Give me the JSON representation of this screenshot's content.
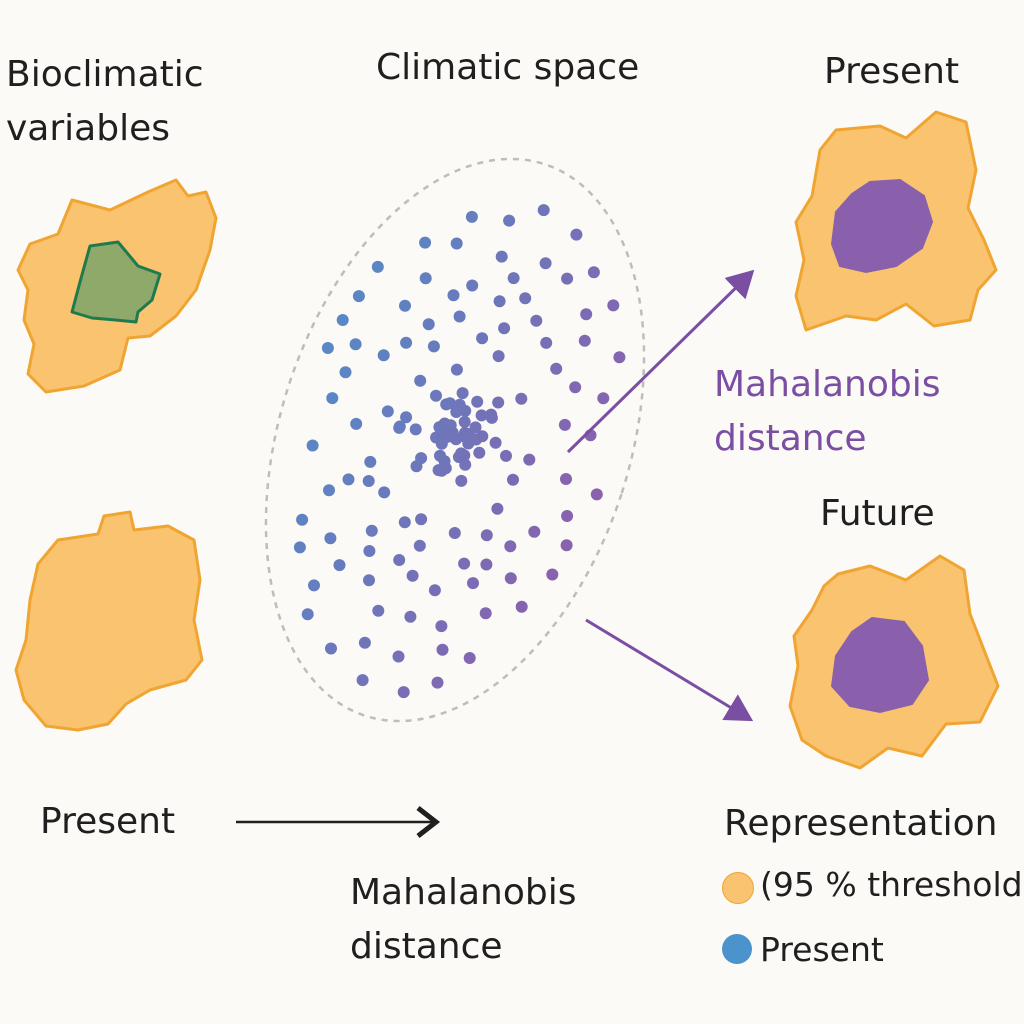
{
  "colors": {
    "map_fill": "#f9c36f",
    "map_stroke": "#f0a532",
    "range_fill": "#8fa96b",
    "range_stroke": "#1f7a4d",
    "purple": "#8a60ad",
    "blue": "#4a93cc",
    "text": "#1f1f1f",
    "dashed": "#bdbdbd"
  },
  "labels": {
    "bioclim_line1": "Bioclimatic",
    "bioclim_line2": "variables",
    "climatic_space": "Climatic space",
    "present_top": "Present",
    "mahal_right_line1": "Mahalanobis",
    "mahal_right_line2": "distance",
    "future": "Future",
    "present_bottom": "Present",
    "mahal_bottom_line1": "Mahalanobis",
    "mahal_bottom_line2": "distance",
    "representation": "Representation"
  },
  "legend": [
    {
      "label": "(95 % threshold",
      "color": "#f9c36f",
      "icon": "orange-dot"
    },
    {
      "label": "Present",
      "color": "#4a93cc",
      "icon": "blue-dot"
    }
  ]
}
